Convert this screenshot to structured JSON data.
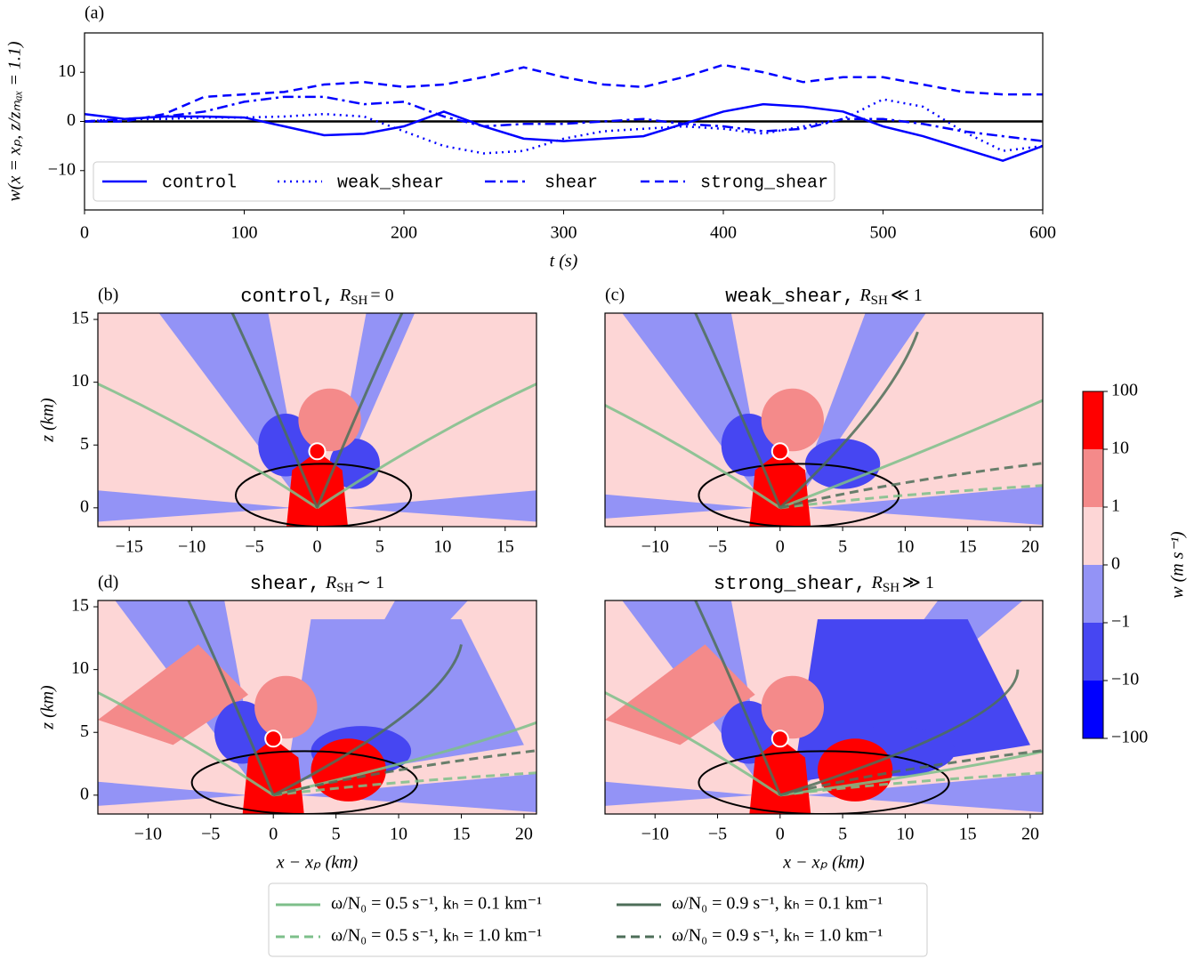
{
  "line_chart": {
    "type": "line",
    "panel_label": "(a)",
    "xlabel": "t (s)",
    "ylabel": "w(x = xₚ, z/zₘₐₓ = 1.1)",
    "x": [
      0,
      25,
      50,
      75,
      100,
      125,
      150,
      175,
      200,
      225,
      250,
      275,
      300,
      325,
      350,
      375,
      400,
      425,
      450,
      475,
      500,
      525,
      550,
      575,
      600
    ],
    "xlim": [
      0,
      600
    ],
    "xticks": [
      0,
      100,
      200,
      300,
      400,
      500,
      600
    ],
    "ylim": [
      -18,
      18
    ],
    "yticks": [
      {
        "value": -10,
        "label": "−10"
      },
      0,
      10
    ],
    "zero_line": true,
    "series": [
      {
        "name": "control",
        "color": "#0000ff",
        "linestyle": "solid",
        "values": [
          1.5,
          0.5,
          1,
          1,
          0.8,
          -1,
          -2.8,
          -2.5,
          -1,
          2,
          -1,
          -3.5,
          -4,
          -3.5,
          -3,
          -0.5,
          2,
          3.5,
          3,
          2,
          -1,
          -3,
          -5.5,
          -8,
          -5
        ]
      },
      {
        "name": "weak_shear",
        "color": "#0000ff",
        "linestyle": "dotted",
        "values": [
          0,
          0.5,
          0.5,
          0.8,
          0.8,
          1,
          1.5,
          1,
          -2,
          -5,
          -6.5,
          -6,
          -3.5,
          -2,
          -1.5,
          -1,
          -1.5,
          -2.5,
          -1,
          0.5,
          4.5,
          3,
          -2,
          -6,
          -5
        ]
      },
      {
        "name": "shear",
        "color": "#0000ff",
        "linestyle": "dashdot",
        "values": [
          0,
          0.5,
          1,
          2,
          4,
          5,
          5,
          3.5,
          4,
          1,
          -1,
          -0.5,
          -0.5,
          0,
          0.5,
          -0.5,
          -1,
          -2,
          -1.5,
          0.5,
          0.5,
          -0.5,
          -2,
          -3,
          -4
        ]
      },
      {
        "name": "strong_shear",
        "color": "#0000ff",
        "linestyle": "dashed",
        "values": [
          0,
          0,
          1.5,
          5,
          5.5,
          6,
          7.5,
          8,
          7,
          7.5,
          9,
          11,
          9,
          7.5,
          7,
          9,
          11.5,
          10,
          8,
          9,
          9,
          7.5,
          6,
          5.5,
          5.5
        ]
      }
    ]
  },
  "panels": [
    {
      "panel_label": "(b)",
      "title": {
        "name": "control,",
        "symbol": "R",
        "subscript": "SH",
        "relation": "= 0"
      },
      "xlim": [
        -17.5,
        17.5
      ],
      "xticks": [
        {
          "value": -15,
          "label": "−15"
        },
        {
          "value": -10,
          "label": "−10"
        },
        {
          "value": -5,
          "label": "−5"
        },
        0,
        5,
        10,
        15
      ],
      "ylim": [
        -1.5,
        15.5
      ],
      "yticks": [
        0,
        5,
        10,
        15
      ],
      "ylabel": "z (km)"
    },
    {
      "panel_label": "(c)",
      "title": {
        "name": "weak_shear,",
        "symbol": "R",
        "subscript": "SH",
        "relation": "≪ 1"
      },
      "xlim": [
        -14,
        21
      ],
      "xticks": [
        {
          "value": -10,
          "label": "−10"
        },
        {
          "value": -5,
          "label": "−5"
        },
        0,
        5,
        10,
        15,
        20
      ],
      "ylim": [
        -1.5,
        15.5
      ]
    },
    {
      "panel_label": "(d)",
      "title": {
        "name": "shear,",
        "symbol": "R",
        "subscript": "SH",
        "relation": "∼ 1"
      },
      "xlim": [
        -14,
        21
      ],
      "xticks": [
        {
          "value": -10,
          "label": "−10"
        },
        {
          "value": -5,
          "label": "−5"
        },
        0,
        5,
        10,
        15,
        20
      ],
      "ylim": [
        -1.5,
        15.5
      ],
      "yticks": [
        0,
        5,
        10,
        15
      ],
      "ylabel": "z (km)",
      "xlabel": "x − xₚ (km)"
    },
    {
      "title": {
        "name": "strong_shear,",
        "symbol": "R",
        "subscript": "SH",
        "relation": "≫ 1"
      },
      "xlim": [
        -14,
        21
      ],
      "xticks": [
        {
          "value": -10,
          "label": "−10"
        },
        {
          "value": -5,
          "label": "−5"
        },
        0,
        5,
        10,
        15,
        20
      ],
      "ylim": [
        -1.5,
        15.5
      ],
      "xlabel": "x − xₚ (km)"
    }
  ],
  "colorbar": {
    "label": "w (m s⁻¹)",
    "ticks": [
      {
        "value": -100,
        "label": "−100"
      },
      {
        "value": -10,
        "label": "−10"
      },
      {
        "value": -1,
        "label": "−1"
      },
      0,
      1,
      10,
      100
    ],
    "colors": [
      "#0000ff",
      "#4646f2",
      "#9393f6",
      "#fdd6d6",
      "#f48a8a",
      "#ff0000"
    ]
  },
  "ray_legend": [
    {
      "name": "ω/N₀ = 0.5 s⁻¹, kₕ = 0.1 km⁻¹",
      "color": "#7dbf8a",
      "linestyle": "solid"
    },
    {
      "name": "ω/N₀ = 0.9 s⁻¹, kₕ = 0.1 km⁻¹",
      "color": "#4d6e58",
      "linestyle": "solid"
    },
    {
      "name": "ω/N₀ = 0.5 s⁻¹, kₕ = 1.0 km⁻¹",
      "color": "#7dbf8a",
      "linestyle": "dashed"
    },
    {
      "name": "ω/N₀ = 0.9 s⁻¹, kₕ = 1.0 km⁻¹",
      "color": "#4d6e58",
      "linestyle": "dashed"
    }
  ]
}
